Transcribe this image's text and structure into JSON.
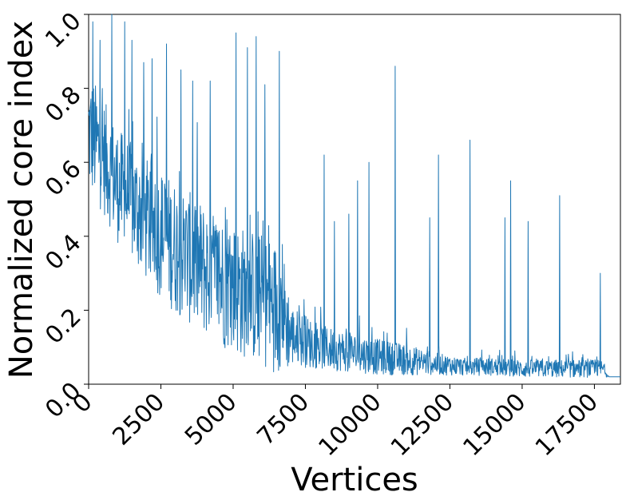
{
  "chart_data": {
    "type": "line",
    "xlabel": "Vertices",
    "ylabel": "Normalized core index",
    "xlim": [
      0,
      18400
    ],
    "ylim": [
      0.0,
      1.0
    ],
    "xticks": [
      0,
      2500,
      5000,
      7500,
      10000,
      12500,
      15000,
      17500
    ],
    "xtick_labels": [
      "0",
      "2500",
      "5000",
      "7500",
      "10000",
      "12500",
      "15000",
      "17500"
    ],
    "yticks": [
      0.0,
      0.2,
      0.4,
      0.6,
      0.8,
      1.0
    ],
    "ytick_labels": [
      "0.0",
      "0.2",
      "0.4",
      "0.6",
      "0.8",
      "1.0"
    ],
    "grid": false,
    "color": "#1f77b4",
    "series": [
      {
        "name": "",
        "envelope_x": [
          0,
          500,
          1000,
          2000,
          3000,
          4000,
          5000,
          6000,
          6700,
          7000,
          8000,
          9000,
          10000,
          11000,
          12000,
          13000,
          14000,
          15000,
          16000,
          17000,
          17800,
          18000,
          18400
        ],
        "envelope_base": [
          0.6,
          0.54,
          0.46,
          0.36,
          0.28,
          0.22,
          0.17,
          0.14,
          0.11,
          0.09,
          0.07,
          0.06,
          0.05,
          0.045,
          0.04,
          0.035,
          0.035,
          0.03,
          0.03,
          0.03,
          0.03,
          0.02,
          0.02
        ],
        "envelope_spread": [
          0.28,
          0.26,
          0.26,
          0.28,
          0.3,
          0.3,
          0.3,
          0.3,
          0.3,
          0.14,
          0.1,
          0.09,
          0.08,
          0.07,
          0.05,
          0.04,
          0.04,
          0.04,
          0.04,
          0.04,
          0.04,
          0.0,
          0.0
        ],
        "spikes": [
          [
            150,
            0.98
          ],
          [
            400,
            0.93
          ],
          [
            800,
            1.0
          ],
          [
            1250,
            0.98
          ],
          [
            1500,
            0.93
          ],
          [
            1900,
            0.87
          ],
          [
            2200,
            0.88
          ],
          [
            2700,
            0.92
          ],
          [
            3200,
            0.85
          ],
          [
            3600,
            0.82
          ],
          [
            4200,
            0.82
          ],
          [
            5100,
            0.95
          ],
          [
            5500,
            0.91
          ],
          [
            5800,
            0.94
          ],
          [
            6100,
            0.81
          ],
          [
            6600,
            0.9
          ],
          [
            8150,
            0.62
          ],
          [
            8500,
            0.44
          ],
          [
            9000,
            0.46
          ],
          [
            9300,
            0.55
          ],
          [
            9700,
            0.6
          ],
          [
            10600,
            0.86
          ],
          [
            11800,
            0.45
          ],
          [
            12100,
            0.62
          ],
          [
            13200,
            0.66
          ],
          [
            14400,
            0.45
          ],
          [
            14600,
            0.55
          ],
          [
            15200,
            0.44
          ],
          [
            16300,
            0.51
          ],
          [
            17700,
            0.3
          ]
        ]
      }
    ]
  }
}
